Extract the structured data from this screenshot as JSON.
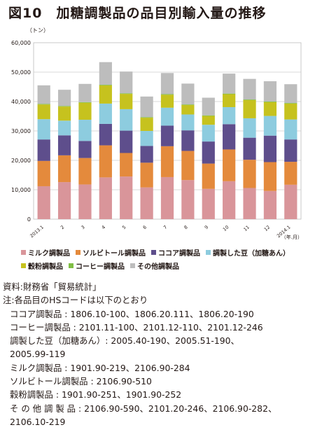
{
  "title": "図10　加糖調製品の品目別輸入量の推移",
  "chart_data": {
    "type": "bar",
    "stacked": true,
    "unit_label": "（トン）",
    "x_unit_label": "（年.月）",
    "categories": [
      "2013.1",
      "2",
      "3",
      "4",
      "5",
      "6",
      "7",
      "8",
      "9",
      "10",
      "11",
      "12",
      "2014.1"
    ],
    "ylim": [
      0,
      60000
    ],
    "yticks": [
      0,
      10000,
      20000,
      30000,
      40000,
      50000,
      60000
    ],
    "ytick_labels": [
      "0",
      "10,000",
      "20,000",
      "30,000",
      "40,000",
      "50,000",
      "60,000"
    ],
    "grid": true,
    "legend_position": "bottom",
    "series": [
      {
        "name": "ミルク調製品",
        "color": "#D9959A",
        "values": [
          11200,
          12600,
          11800,
          14200,
          14500,
          10800,
          14300,
          13300,
          10300,
          12900,
          10600,
          9600,
          11700
        ]
      },
      {
        "name": "ソルビトール調製品",
        "color": "#E48A3C",
        "values": [
          8600,
          9100,
          9000,
          10900,
          8000,
          8400,
          10500,
          9900,
          8600,
          10800,
          9600,
          9800,
          7800
        ]
      },
      {
        "name": "ココア調製品",
        "color": "#5E4E8C",
        "values": [
          7300,
          6800,
          5800,
          7300,
          7600,
          5700,
          7000,
          7000,
          7500,
          8600,
          7500,
          9000,
          7600
        ]
      },
      {
        "name": "調製した豆（加糖あん）",
        "color": "#8DCCDF",
        "values": [
          6900,
          5000,
          7200,
          6900,
          7300,
          5100,
          6100,
          5400,
          5700,
          5800,
          6600,
          6700,
          6800
        ]
      },
      {
        "name": "穀粉調製品",
        "color": "#C6C21E",
        "values": [
          5000,
          4800,
          5800,
          6200,
          5200,
          4500,
          4400,
          3200,
          3000,
          4400,
          6200,
          4700,
          5400
        ]
      },
      {
        "name": "コーヒー調製品",
        "color": "#7FBE44",
        "values": [
          200,
          200,
          200,
          200,
          200,
          200,
          200,
          200,
          200,
          200,
          200,
          200,
          200
        ]
      },
      {
        "name": "その他調製品",
        "color": "#BDBDBD",
        "values": [
          6300,
          5500,
          6200,
          7700,
          7400,
          7000,
          7200,
          7100,
          6000,
          6800,
          7000,
          6900,
          6400
        ]
      }
    ]
  },
  "notes": {
    "source": "資料:財務省「貿易統計」",
    "intro": "注:各品目のHSコードは以下のとおり",
    "lines": [
      "ココア調製品 : 1806.10-100、1806.20.111、1806.20-190",
      "コーヒー調製品 : 2101.11-100、2101.12-110、2101.12-246",
      "調製した豆（加糖あん）: 2005.40-190、2005.51-190、",
      "2005.99-119",
      "ミルク調製品 : 1901.90-219、2106.90-284",
      "ソルビトール調製品 : 2106.90-510",
      "穀粉調製品 : 1901.90-251、1901.90-252",
      "そ の 他 調 製 品 : 2106.90-590、2101.20-246、2106.90-282、",
      "2106.10-219"
    ]
  }
}
